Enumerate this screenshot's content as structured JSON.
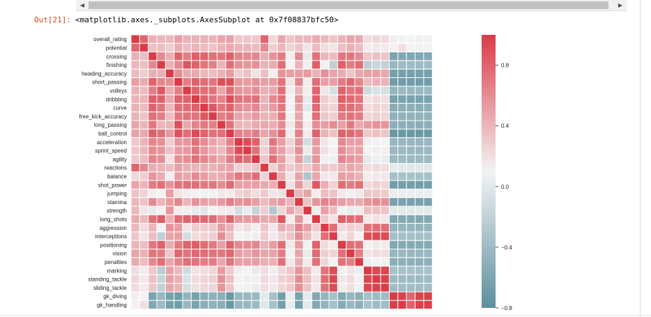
{
  "notebook": {
    "out_prompt": "Out[21]:",
    "out_text": "<matplotlib.axes._subplots.AxesSubplot at 0x7f08837bfc50>",
    "scroll_left_icon": "left-arrow-icon",
    "scroll_right_icon": "right-arrow-icon"
  },
  "chart_data": {
    "type": "heatmap",
    "title": "",
    "row_labels": [
      "overall_rating",
      "potential",
      "crossing",
      "finishing",
      "heading_accuracy",
      "short_passing",
      "volleys",
      "dribbling",
      "curve",
      "free_kick_accuracy",
      "long_passing",
      "ball_control",
      "acceleration",
      "sprint_speed",
      "agility",
      "reactions",
      "balance",
      "shot_power",
      "jumping",
      "stamina",
      "strength",
      "long_shots",
      "aggression",
      "interceptions",
      "positioning",
      "vision",
      "penalties",
      "marking",
      "standing_tackle",
      "sliding_tackle",
      "gk_diving",
      "gk_handling"
    ],
    "n_columns": 35,
    "colorbar": {
      "min": -0.8,
      "max": 1.0,
      "ticks": [
        0.8,
        0.4,
        0.0,
        -0.4,
        -0.8
      ],
      "tick_labels": [
        "0.8",
        "0.4",
        "0.0",
        "−0.4",
        "−0.8"
      ]
    },
    "colors": {
      "negative": "#5b8f9d",
      "neutral": "#f3f3f4",
      "positive": "#da3b46",
      "grid": "#ffffff"
    },
    "values": [
      [
        1.0,
        0.77,
        0.36,
        0.33,
        0.31,
        0.46,
        0.36,
        0.35,
        0.36,
        0.35,
        0.43,
        0.44,
        0.24,
        0.25,
        0.24,
        0.77,
        0.16,
        0.43,
        0.26,
        0.33,
        0.32,
        0.39,
        0.32,
        0.25,
        0.34,
        0.43,
        0.39,
        0.13,
        0.16,
        0.13,
        0.03,
        0.01,
        0.0,
        0.01,
        0.01
      ],
      [
        0.77,
        1.0,
        0.28,
        0.29,
        0.21,
        0.38,
        0.3,
        0.34,
        0.3,
        0.26,
        0.34,
        0.4,
        0.34,
        0.33,
        0.3,
        0.58,
        0.2,
        0.33,
        0.17,
        0.26,
        0.08,
        0.31,
        0.13,
        0.08,
        0.29,
        0.36,
        0.3,
        0.04,
        0.06,
        0.05,
        0.01,
        0.11,
        0.0,
        0.01,
        0.0
      ],
      [
        0.36,
        0.28,
        1.0,
        0.58,
        0.37,
        0.79,
        0.64,
        0.81,
        0.78,
        0.71,
        0.68,
        0.81,
        0.6,
        0.58,
        0.6,
        0.38,
        0.52,
        0.65,
        0.03,
        0.57,
        -0.07,
        0.71,
        0.33,
        0.3,
        0.68,
        0.69,
        0.57,
        0.24,
        0.28,
        0.25,
        -0.64,
        -0.6,
        -0.6,
        -0.6,
        -0.6
      ],
      [
        0.33,
        0.29,
        0.58,
        1.0,
        0.37,
        0.58,
        0.85,
        0.79,
        0.69,
        0.63,
        0.34,
        0.72,
        0.53,
        0.51,
        0.54,
        0.35,
        0.39,
        0.73,
        0.0,
        0.34,
        0.02,
        0.81,
        -0.02,
        -0.28,
        0.8,
        0.65,
        0.73,
        -0.3,
        -0.24,
        -0.27,
        -0.48,
        -0.45,
        -0.45,
        -0.45,
        -0.45
      ],
      [
        0.31,
        0.21,
        0.37,
        0.37,
        1.0,
        0.55,
        0.39,
        0.4,
        0.32,
        0.3,
        0.34,
        0.48,
        0.2,
        0.27,
        0.1,
        0.29,
        0.03,
        0.52,
        0.46,
        0.46,
        0.49,
        0.36,
        0.53,
        0.43,
        0.39,
        0.25,
        0.42,
        0.44,
        0.45,
        0.42,
        -0.66,
        -0.66,
        -0.66,
        -0.66,
        -0.66
      ],
      [
        0.46,
        0.38,
        0.79,
        0.58,
        0.55,
        1.0,
        0.64,
        0.79,
        0.73,
        0.68,
        0.89,
        0.88,
        0.5,
        0.48,
        0.54,
        0.45,
        0.47,
        0.7,
        0.09,
        0.6,
        0.04,
        0.73,
        0.46,
        0.46,
        0.65,
        0.76,
        0.6,
        0.31,
        0.37,
        0.35,
        -0.69,
        -0.69,
        -0.69,
        -0.69,
        -0.69
      ],
      [
        0.36,
        0.3,
        0.64,
        0.85,
        0.39,
        0.64,
        1.0,
        0.78,
        0.73,
        0.7,
        0.42,
        0.73,
        0.51,
        0.49,
        0.55,
        0.37,
        0.41,
        0.72,
        0.04,
        0.34,
        0.03,
        0.78,
        0.08,
        -0.17,
        0.79,
        0.69,
        0.72,
        -0.2,
        -0.14,
        -0.16,
        -0.5,
        -0.47,
        -0.47,
        -0.47,
        -0.47
      ],
      [
        0.35,
        0.34,
        0.81,
        0.79,
        0.4,
        0.79,
        0.78,
        1.0,
        0.79,
        0.69,
        0.61,
        0.9,
        0.7,
        0.67,
        0.71,
        0.34,
        0.58,
        0.71,
        0.01,
        0.52,
        -0.07,
        0.79,
        0.21,
        0.13,
        0.81,
        0.75,
        0.69,
        0.09,
        0.14,
        0.11,
        -0.65,
        -0.64,
        -0.64,
        -0.64,
        -0.64
      ],
      [
        0.36,
        0.3,
        0.78,
        0.69,
        0.32,
        0.73,
        0.73,
        0.79,
        1.0,
        0.84,
        0.67,
        0.78,
        0.56,
        0.51,
        0.6,
        0.36,
        0.48,
        0.66,
        -0.02,
        0.45,
        -0.1,
        0.75,
        0.21,
        0.17,
        0.73,
        0.73,
        0.64,
        0.13,
        0.17,
        0.15,
        -0.56,
        -0.55,
        -0.55,
        -0.55,
        -0.55
      ],
      [
        0.35,
        0.26,
        0.71,
        0.63,
        0.3,
        0.68,
        0.7,
        0.69,
        0.84,
        1.0,
        0.63,
        0.7,
        0.43,
        0.39,
        0.5,
        0.35,
        0.38,
        0.68,
        0.01,
        0.42,
        0.0,
        0.73,
        0.24,
        0.2,
        0.66,
        0.7,
        0.65,
        0.16,
        0.19,
        0.16,
        -0.53,
        -0.52,
        -0.52,
        -0.52,
        -0.52
      ],
      [
        0.43,
        0.34,
        0.68,
        0.34,
        0.34,
        0.89,
        0.42,
        0.61,
        0.67,
        0.63,
        1.0,
        0.7,
        0.34,
        0.31,
        0.4,
        0.41,
        0.38,
        0.56,
        0.07,
        0.49,
        0.05,
        0.55,
        0.47,
        0.56,
        0.45,
        0.67,
        0.41,
        0.48,
        0.53,
        0.51,
        -0.55,
        -0.55,
        -0.55,
        -0.55,
        -0.55
      ],
      [
        0.44,
        0.4,
        0.81,
        0.72,
        0.48,
        0.88,
        0.73,
        0.9,
        0.78,
        0.7,
        0.7,
        1.0,
        0.61,
        0.58,
        0.64,
        0.43,
        0.53,
        0.75,
        0.05,
        0.63,
        0.05,
        0.79,
        0.35,
        0.27,
        0.79,
        0.76,
        0.69,
        0.23,
        0.28,
        0.25,
        -0.73,
        -0.72,
        -0.72,
        -0.72,
        -0.72
      ],
      [
        0.24,
        0.34,
        0.6,
        0.53,
        0.2,
        0.5,
        0.51,
        0.7,
        0.56,
        0.43,
        0.34,
        0.61,
        1.0,
        0.9,
        0.79,
        0.18,
        0.68,
        0.46,
        0.17,
        0.52,
        -0.18,
        0.5,
        0.07,
        0.0,
        0.58,
        0.46,
        0.46,
        -0.03,
        0.01,
        0.0,
        -0.48,
        -0.48,
        -0.48,
        -0.48,
        -0.48
      ],
      [
        0.25,
        0.33,
        0.58,
        0.51,
        0.27,
        0.48,
        0.49,
        0.67,
        0.51,
        0.39,
        0.31,
        0.58,
        0.9,
        1.0,
        0.72,
        0.19,
        0.6,
        0.46,
        0.22,
        0.55,
        -0.06,
        0.47,
        0.12,
        0.02,
        0.56,
        0.42,
        0.45,
        0.0,
        0.03,
        0.02,
        -0.47,
        -0.47,
        -0.47,
        -0.47,
        -0.47
      ],
      [
        0.24,
        0.3,
        0.6,
        0.54,
        0.1,
        0.54,
        0.55,
        0.71,
        0.6,
        0.5,
        0.4,
        0.64,
        0.79,
        0.72,
        1.0,
        0.25,
        0.73,
        0.46,
        0.13,
        0.47,
        -0.25,
        0.52,
        0.03,
        -0.03,
        0.59,
        0.52,
        0.47,
        -0.07,
        -0.03,
        -0.05,
        -0.47,
        -0.46,
        -0.46,
        -0.46,
        -0.46
      ],
      [
        0.77,
        0.58,
        0.38,
        0.35,
        0.29,
        0.45,
        0.37,
        0.34,
        0.36,
        0.35,
        0.41,
        0.43,
        0.18,
        0.19,
        0.25,
        1.0,
        0.18,
        0.41,
        0.22,
        0.31,
        0.22,
        0.39,
        0.25,
        0.22,
        0.34,
        0.42,
        0.37,
        0.12,
        0.14,
        0.12,
        -0.08,
        -0.1,
        -0.1,
        -0.1,
        -0.1
      ],
      [
        0.16,
        0.2,
        0.52,
        0.39,
        0.03,
        0.47,
        0.41,
        0.58,
        0.48,
        0.38,
        0.38,
        0.53,
        0.68,
        0.6,
        0.73,
        0.18,
        1.0,
        0.38,
        0.08,
        0.43,
        -0.36,
        0.42,
        0.06,
        0.06,
        0.47,
        0.44,
        0.36,
        0.03,
        0.07,
        0.06,
        -0.41,
        -0.4,
        -0.4,
        -0.4,
        -0.4
      ],
      [
        0.43,
        0.33,
        0.65,
        0.73,
        0.52,
        0.7,
        0.72,
        0.71,
        0.66,
        0.68,
        0.56,
        0.75,
        0.46,
        0.46,
        0.46,
        0.41,
        0.38,
        1.0,
        0.1,
        0.49,
        0.17,
        0.85,
        0.38,
        0.18,
        0.73,
        0.64,
        0.71,
        0.14,
        0.19,
        0.16,
        -0.68,
        -0.67,
        -0.67,
        -0.67,
        -0.67
      ],
      [
        0.26,
        0.17,
        0.03,
        0.0,
        0.46,
        0.09,
        0.04,
        0.01,
        -0.02,
        0.01,
        0.07,
        0.05,
        0.17,
        0.22,
        0.13,
        0.22,
        0.08,
        0.1,
        1.0,
        0.34,
        0.43,
        0.04,
        0.3,
        0.26,
        0.06,
        -0.02,
        0.06,
        0.24,
        0.24,
        0.23,
        -0.05,
        -0.05,
        -0.05,
        -0.05,
        -0.05
      ],
      [
        0.33,
        0.26,
        0.57,
        0.34,
        0.46,
        0.6,
        0.34,
        0.52,
        0.45,
        0.42,
        0.49,
        0.63,
        0.52,
        0.55,
        0.47,
        0.31,
        0.43,
        0.49,
        0.34,
        1.0,
        0.27,
        0.51,
        0.61,
        0.55,
        0.47,
        0.42,
        0.4,
        0.51,
        0.56,
        0.54,
        -0.65,
        -0.65,
        -0.65,
        -0.65,
        -0.65
      ],
      [
        0.32,
        0.08,
        -0.07,
        0.02,
        0.49,
        0.04,
        0.03,
        -0.07,
        -0.1,
        0.0,
        0.05,
        0.05,
        -0.18,
        -0.06,
        -0.25,
        0.22,
        -0.36,
        0.17,
        0.43,
        0.27,
        1.0,
        0.04,
        0.46,
        0.3,
        -0.02,
        -0.06,
        0.05,
        0.29,
        0.28,
        0.26,
        -0.08,
        -0.08,
        -0.08,
        -0.08,
        -0.08
      ],
      [
        0.39,
        0.31,
        0.71,
        0.81,
        0.36,
        0.73,
        0.78,
        0.79,
        0.75,
        0.73,
        0.55,
        0.79,
        0.5,
        0.47,
        0.52,
        0.39,
        0.42,
        0.85,
        0.04,
        0.51,
        0.04,
        1.0,
        0.23,
        0.09,
        0.8,
        0.74,
        0.71,
        0.05,
        0.1,
        0.07,
        -0.6,
        -0.59,
        -0.59,
        -0.59,
        -0.59
      ],
      [
        0.32,
        0.13,
        0.33,
        -0.02,
        0.53,
        0.46,
        0.08,
        0.21,
        0.21,
        0.24,
        0.47,
        0.35,
        0.07,
        0.12,
        0.03,
        0.25,
        0.06,
        0.38,
        0.3,
        0.61,
        0.46,
        0.23,
        1.0,
        0.73,
        0.14,
        0.2,
        0.16,
        0.7,
        0.73,
        0.71,
        -0.5,
        -0.5,
        -0.5,
        -0.5,
        -0.5
      ],
      [
        0.25,
        0.08,
        0.3,
        -0.28,
        0.43,
        0.46,
        -0.17,
        0.13,
        0.17,
        0.2,
        0.56,
        0.27,
        0.0,
        0.02,
        -0.03,
        0.22,
        0.06,
        0.18,
        0.26,
        0.55,
        0.3,
        0.09,
        0.73,
        1.0,
        0.05,
        0.17,
        0.01,
        0.9,
        0.93,
        0.91,
        -0.41,
        -0.41,
        -0.41,
        -0.41,
        -0.41
      ],
      [
        0.34,
        0.29,
        0.68,
        0.8,
        0.39,
        0.65,
        0.79,
        0.81,
        0.73,
        0.66,
        0.45,
        0.79,
        0.58,
        0.56,
        0.59,
        0.34,
        0.47,
        0.73,
        0.06,
        0.47,
        -0.02,
        0.8,
        0.14,
        0.05,
        1.0,
        0.72,
        0.7,
        0.02,
        0.07,
        0.05,
        -0.6,
        -0.58,
        -0.58,
        -0.58,
        -0.58
      ],
      [
        0.43,
        0.36,
        0.69,
        0.65,
        0.25,
        0.76,
        0.69,
        0.75,
        0.73,
        0.7,
        0.67,
        0.76,
        0.46,
        0.42,
        0.52,
        0.42,
        0.44,
        0.64,
        -0.02,
        0.42,
        -0.06,
        0.74,
        0.2,
        0.17,
        0.72,
        1.0,
        0.63,
        0.08,
        0.13,
        0.11,
        -0.49,
        -0.48,
        -0.48,
        -0.48,
        -0.48
      ],
      [
        0.39,
        0.3,
        0.57,
        0.73,
        0.42,
        0.6,
        0.72,
        0.69,
        0.64,
        0.65,
        0.41,
        0.69,
        0.46,
        0.45,
        0.47,
        0.37,
        0.36,
        0.71,
        0.06,
        0.4,
        0.05,
        0.71,
        0.16,
        0.01,
        0.7,
        0.63,
        1.0,
        -0.04,
        0.01,
        -0.02,
        -0.55,
        -0.54,
        -0.54,
        -0.54,
        -0.54
      ],
      [
        0.13,
        0.04,
        0.24,
        -0.3,
        0.44,
        0.31,
        -0.2,
        0.09,
        0.13,
        0.16,
        0.48,
        0.23,
        -0.03,
        0.0,
        -0.07,
        0.12,
        0.03,
        0.14,
        0.24,
        0.51,
        0.29,
        0.05,
        0.7,
        0.9,
        0.02,
        0.08,
        -0.04,
        1.0,
        0.93,
        0.94,
        -0.41,
        -0.4,
        -0.4,
        -0.4,
        -0.4
      ],
      [
        0.16,
        0.06,
        0.28,
        -0.24,
        0.45,
        0.37,
        -0.14,
        0.14,
        0.17,
        0.19,
        0.53,
        0.28,
        0.01,
        0.03,
        -0.03,
        0.14,
        0.07,
        0.19,
        0.24,
        0.56,
        0.28,
        0.1,
        0.73,
        0.93,
        0.07,
        0.13,
        0.01,
        0.93,
        1.0,
        0.97,
        -0.46,
        -0.45,
        -0.45,
        -0.45,
        -0.45
      ],
      [
        0.13,
        0.05,
        0.25,
        -0.27,
        0.42,
        0.35,
        -0.16,
        0.11,
        0.15,
        0.16,
        0.51,
        0.25,
        0.0,
        0.02,
        -0.05,
        0.12,
        0.06,
        0.16,
        0.23,
        0.54,
        0.26,
        0.07,
        0.71,
        0.91,
        0.05,
        0.11,
        -0.02,
        0.94,
        0.97,
        1.0,
        -0.44,
        -0.43,
        -0.43,
        -0.43,
        -0.43
      ],
      [
        0.03,
        0.01,
        -0.64,
        -0.48,
        -0.66,
        -0.69,
        -0.5,
        -0.65,
        -0.56,
        -0.53,
        -0.55,
        -0.73,
        -0.48,
        -0.47,
        -0.47,
        -0.08,
        -0.41,
        -0.68,
        -0.05,
        -0.65,
        -0.08,
        -0.6,
        -0.5,
        -0.41,
        -0.6,
        -0.49,
        -0.55,
        -0.41,
        -0.46,
        -0.44,
        1.0,
        0.97,
        0.77,
        0.97,
        0.97
      ],
      [
        0.01,
        0.11,
        -0.6,
        -0.45,
        -0.66,
        -0.69,
        -0.47,
        -0.64,
        -0.55,
        -0.52,
        -0.55,
        -0.72,
        -0.48,
        -0.47,
        -0.46,
        -0.1,
        -0.4,
        -0.67,
        -0.05,
        -0.65,
        -0.08,
        -0.59,
        -0.5,
        -0.41,
        -0.58,
        -0.48,
        -0.54,
        -0.4,
        -0.45,
        -0.43,
        0.97,
        1.0,
        0.78,
        0.97,
        0.97
      ]
    ]
  }
}
